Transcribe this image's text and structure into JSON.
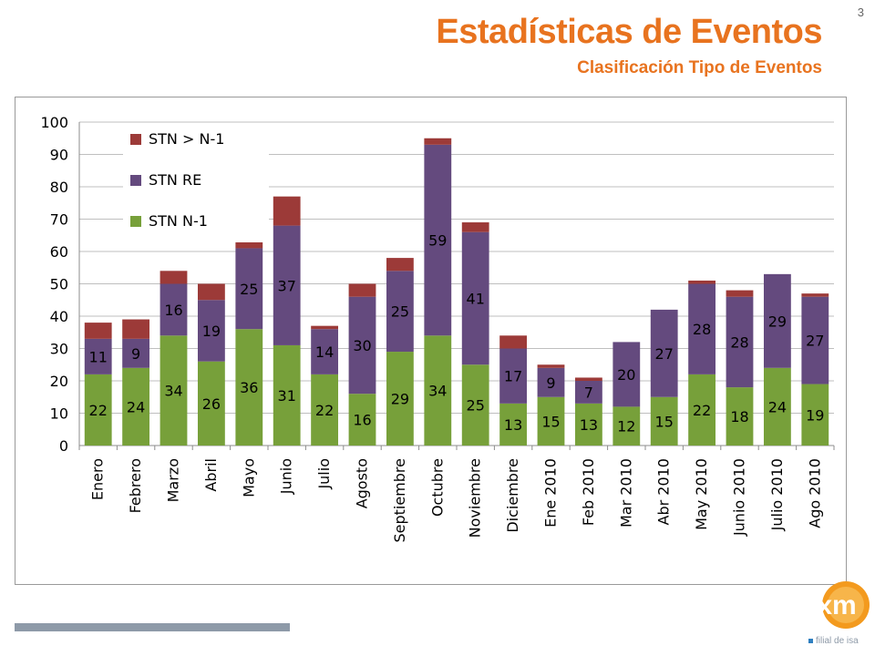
{
  "page": {
    "number": "3"
  },
  "header": {
    "title": "Estadísticas de Eventos",
    "subtitle": "Clasificación Tipo de Eventos"
  },
  "branding": {
    "logo_text": "xm",
    "tagline": "filial de isa"
  },
  "colors": {
    "title": "#e8731f",
    "stn_n1": "#77a03a",
    "stn_re": "#644a7e",
    "stn_gt": "#9c3a38",
    "grid": "#bfbfbf",
    "frame": "#9a9a9a",
    "footer_bar": "#8e9aa8"
  },
  "chart_data": {
    "type": "bar",
    "stacked": true,
    "title": "",
    "xlabel": "",
    "ylabel": "",
    "ylim": [
      0,
      100
    ],
    "yticks": [
      "0",
      "10",
      "20",
      "30",
      "40",
      "50",
      "60",
      "70",
      "80",
      "90",
      "100"
    ],
    "grid": true,
    "legend_position": "top-left",
    "categories": [
      "Enero",
      "Febrero",
      "Marzo",
      "Abril",
      "Mayo",
      "Junio",
      "Julio",
      "Agosto",
      "Septiembre",
      "Octubre",
      "Noviembre",
      "Diciembre",
      "Ene 2010",
      "Feb 2010",
      "Mar 2010",
      "Abr 2010",
      "May 2010",
      "Junio 2010",
      "Julio 2010",
      "Ago 2010"
    ],
    "series": [
      {
        "name": "STN N-1",
        "color": "#77a03a",
        "values": [
          22,
          24,
          34,
          26,
          36,
          31,
          22,
          16,
          29,
          34,
          25,
          13,
          15,
          13,
          12,
          15,
          22,
          18,
          24,
          19
        ]
      },
      {
        "name": "STN RE",
        "color": "#644a7e",
        "values": [
          11,
          9,
          16,
          19,
          25,
          37,
          14,
          30,
          25,
          59,
          41,
          17,
          9,
          7,
          20,
          27,
          28,
          28,
          29,
          27
        ]
      },
      {
        "name": "STN > N-1",
        "color": "#9c3a38",
        "values": [
          5,
          6,
          4,
          5,
          2,
          9,
          1,
          4,
          4,
          2,
          3,
          4,
          1,
          1,
          0,
          0,
          1,
          2,
          0,
          1
        ]
      }
    ],
    "labels": {
      "STN N-1": [
        "22",
        "24",
        "34",
        "26",
        "36",
        "31",
        "22",
        "16",
        "29",
        "34",
        "25",
        "13",
        "15",
        "13",
        "12",
        "15",
        "22",
        "18",
        "24",
        "19"
      ],
      "STN RE": [
        "11",
        "9",
        "16",
        "19",
        "25",
        "37",
        "14",
        "30",
        "25",
        "59",
        "41",
        "17",
        "9",
        "7",
        "20",
        "27",
        "28",
        "28",
        "29",
        "27"
      ],
      "STN > N-1": [
        "",
        "",
        "",
        "",
        "",
        "",
        "",
        "",
        "",
        "",
        "",
        "",
        "",
        "",
        "",
        "",
        "",
        "",
        "",
        ""
      ]
    },
    "legend": [
      {
        "name": "STN > N-1",
        "color": "#9c3a38"
      },
      {
        "name": "STN RE",
        "color": "#644a7e"
      },
      {
        "name": "STN N-1",
        "color": "#77a03a"
      }
    ]
  }
}
